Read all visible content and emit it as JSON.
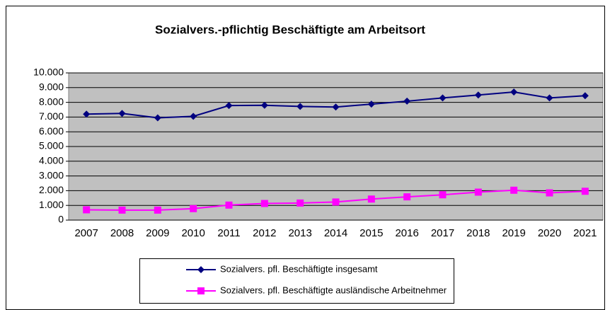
{
  "chart_data": {
    "type": "line",
    "title": "Sozialvers.-pflichtig Beschäftigte am Arbeitsort",
    "categories": [
      "2007",
      "2008",
      "2009",
      "2010",
      "2011",
      "2012",
      "2013",
      "2014",
      "2015",
      "2016",
      "2017",
      "2018",
      "2019",
      "2020",
      "2021"
    ],
    "series": [
      {
        "name": "Sozialvers. pfl. Beschäftigte  insgesamt",
        "color": "#000080",
        "marker": "diamond",
        "values": [
          7200,
          7250,
          6950,
          7050,
          7780,
          7800,
          7720,
          7680,
          7880,
          8080,
          8300,
          8500,
          8700,
          8300,
          8450
        ]
      },
      {
        "name": "Sozialvers. pfl. Beschäftigte ausländische Arbeitnehmer",
        "color": "#ff00ff",
        "marker": "square",
        "values": [
          700,
          680,
          680,
          780,
          1020,
          1130,
          1160,
          1230,
          1430,
          1580,
          1720,
          1900,
          2030,
          1850,
          1960
        ]
      }
    ],
    "ylim": [
      0,
      10000
    ],
    "yticks": [
      0,
      {
        "value": 1000,
        "label": "1.000"
      },
      {
        "value": 2000,
        "label": "2.000"
      },
      {
        "value": 3000,
        "label": "3.000"
      },
      {
        "value": 4000,
        "label": "4.000"
      },
      {
        "value": 5000,
        "label": "5.000"
      },
      {
        "value": 6000,
        "label": "6.000"
      },
      {
        "value": 7000,
        "label": "7.000"
      },
      {
        "value": 8000,
        "label": "8.000"
      },
      {
        "value": 9000,
        "label": "9.000"
      },
      {
        "value": 10000,
        "label": "10.000"
      }
    ],
    "grid": true,
    "legend": "bottom"
  }
}
